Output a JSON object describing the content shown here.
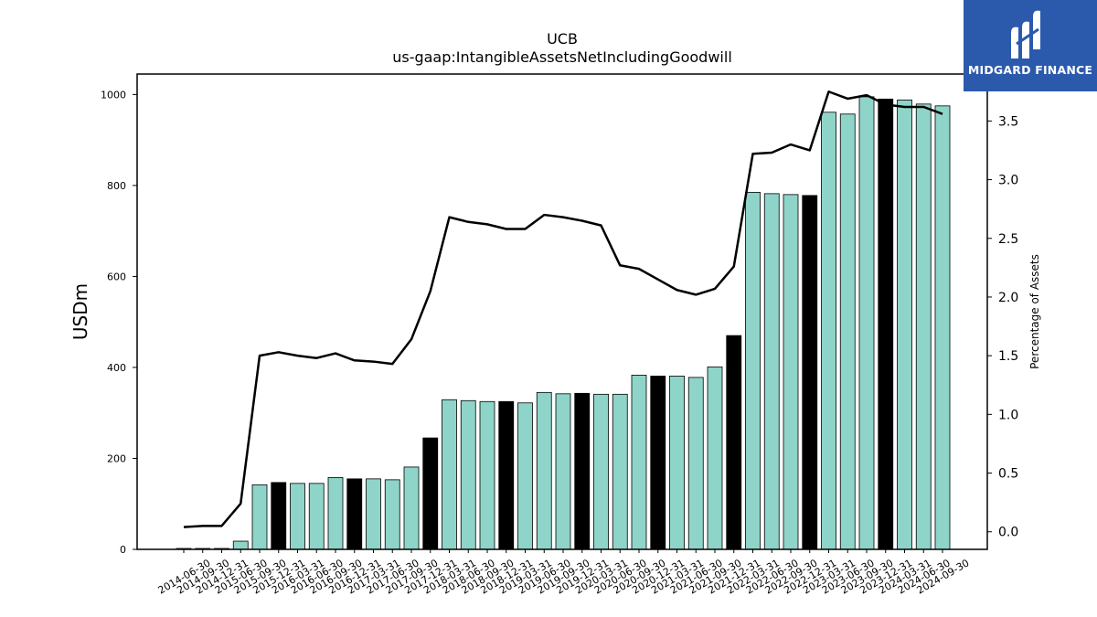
{
  "chart_data": {
    "type": "bar",
    "title": "UCB",
    "subtitle": "us-gaap:IntangibleAssetsNetIncludingGoodwill",
    "ylabel": "USDm",
    "y2label": "Percentage of Assets",
    "ylim": [
      0,
      1045
    ],
    "y2lim": [
      -0.15,
      3.9
    ],
    "yticks": [
      0,
      200,
      400,
      600,
      800,
      1000
    ],
    "y2ticks": [
      0.0,
      0.5,
      1.0,
      1.5,
      2.0,
      2.5,
      3.0,
      3.5
    ],
    "y2tick_labels": [
      "0.0",
      "0.5",
      "1.0",
      "1.5",
      "2.0",
      "2.5",
      "3.0",
      "3.5"
    ],
    "grid": false,
    "categories": [
      "2014-06-30",
      "2014-09-30",
      "2014-12-31",
      "2015-06-30",
      "2015-09-30",
      "2015-12-31",
      "2016-03-31",
      "2016-06-30",
      "2016-09-30",
      "2016-12-31",
      "2017-03-31",
      "2017-06-30",
      "2017-09-30",
      "2017-12-31",
      "2018-03-31",
      "2018-06-30",
      "2018-09-30",
      "2018-12-31",
      "2019-03-31",
      "2019-06-30",
      "2019-09-30",
      "2019-12-31",
      "2020-03-31",
      "2020-06-30",
      "2020-09-30",
      "2020-12-31",
      "2021-03-31",
      "2021-06-30",
      "2021-09-30",
      "2021-12-31",
      "2022-03-31",
      "2022-06-30",
      "2022-09-30",
      "2022-12-31",
      "2023-03-31",
      "2023-06-30",
      "2023-09-30",
      "2023-12-31",
      "2024-03-31",
      "2024-06-30",
      "2024-09-30"
    ],
    "series": [
      {
        "kind": "bar",
        "values": [
          2,
          2,
          2,
          18,
          142,
          147,
          145,
          145,
          158,
          155,
          155,
          153,
          181,
          245,
          329,
          327,
          325,
          325,
          322,
          345,
          342,
          343,
          341,
          341,
          383,
          381,
          381,
          378,
          401,
          470,
          785,
          782,
          780,
          778,
          961,
          957,
          995,
          990,
          988,
          979,
          975
        ],
        "highlighted": [
          false,
          false,
          false,
          false,
          false,
          true,
          false,
          false,
          false,
          true,
          false,
          false,
          false,
          true,
          false,
          false,
          false,
          true,
          false,
          false,
          false,
          true,
          false,
          false,
          false,
          true,
          false,
          false,
          false,
          true,
          false,
          false,
          false,
          true,
          false,
          false,
          false,
          true,
          false,
          false,
          false
        ]
      },
      {
        "kind": "line",
        "axis": "right",
        "values": [
          0.04,
          0.05,
          0.05,
          0.24,
          1.5,
          1.53,
          1.5,
          1.48,
          1.52,
          1.46,
          1.45,
          1.43,
          1.64,
          2.05,
          2.68,
          2.64,
          2.62,
          2.58,
          2.58,
          2.7,
          2.68,
          2.65,
          2.61,
          2.27,
          2.24,
          2.15,
          2.06,
          2.02,
          2.07,
          2.26,
          3.22,
          3.23,
          3.3,
          3.25,
          3.75,
          3.69,
          3.72,
          3.64,
          3.62,
          3.62,
          3.56
        ]
      }
    ],
    "colors": {
      "bar": "#8fd4c8",
      "bar_highlight": "#000000",
      "line": "#000000",
      "edge": "#000000"
    }
  },
  "brand": {
    "name": "MIDGARD FINANCE",
    "color": "#2b5aad"
  }
}
